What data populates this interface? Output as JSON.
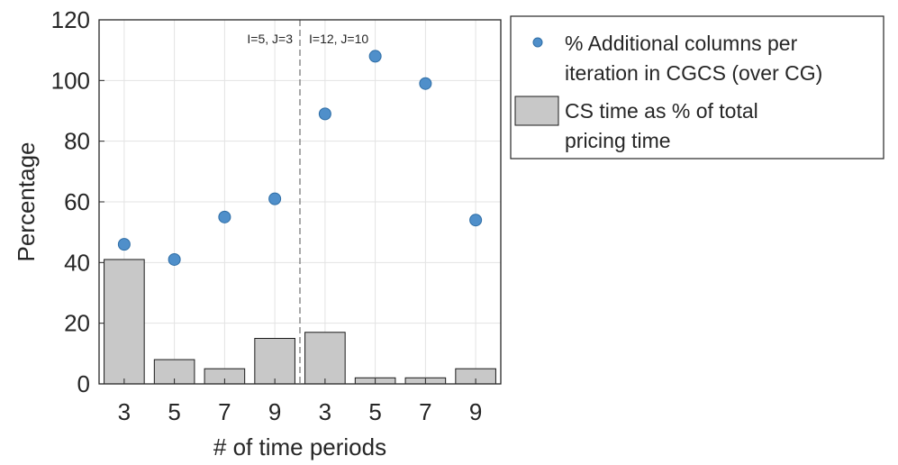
{
  "chart_data": {
    "type": "bar",
    "xlabel": "# of time periods",
    "ylabel": "Percentage",
    "ylim": [
      0,
      120
    ],
    "yticks": [
      0,
      20,
      40,
      60,
      80,
      100,
      120
    ],
    "categories": [
      "3",
      "5",
      "7",
      "9",
      "3",
      "5",
      "7",
      "9"
    ],
    "grid": true,
    "legend_position": "outside-right-top",
    "annotations": [
      "I=5, J=3",
      "I=12, J=10"
    ],
    "series": [
      {
        "kind": "scatter",
        "name_lines": [
          "% Additional columns per",
          "iteration in CGCS (over CG)"
        ],
        "values": [
          46,
          41,
          55,
          61,
          89,
          108,
          99,
          54
        ],
        "color": "#4f8fca"
      },
      {
        "kind": "bar",
        "name_lines": [
          "CS time as % of total",
          "pricing time"
        ],
        "values": [
          41,
          8,
          5,
          15,
          17,
          2,
          2,
          5
        ],
        "color": "#c8c8c8"
      }
    ]
  }
}
